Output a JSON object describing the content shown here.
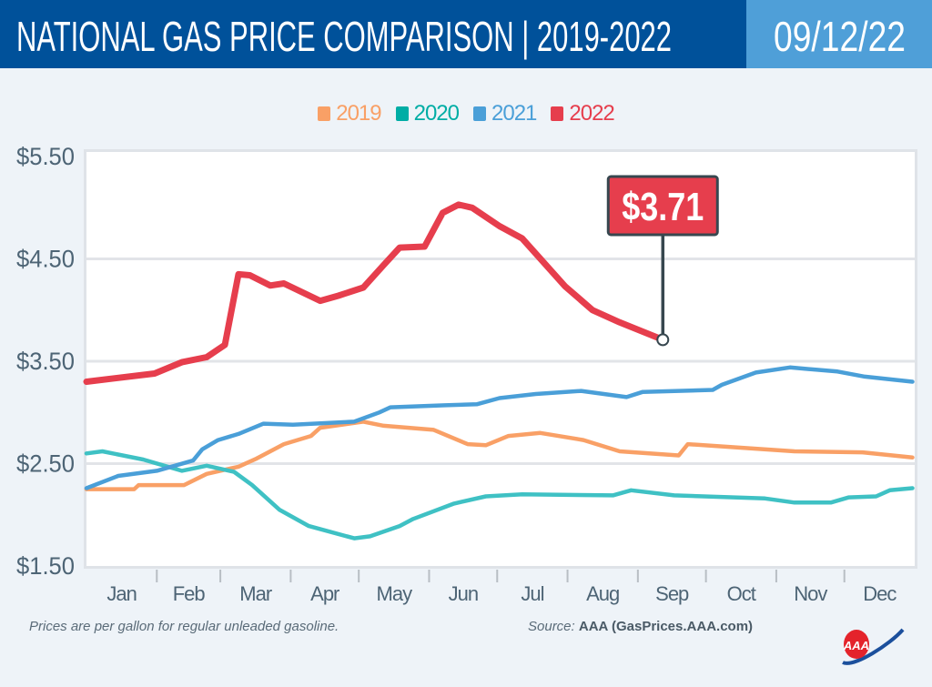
{
  "header": {
    "title": "NATIONAL GAS PRICE COMPARISON | 2019-2022",
    "date": "09/12/22"
  },
  "footer": {
    "note": "Prices are per gallon for regular unleaded gasoline.",
    "source_label": "Source:",
    "source": "AAA (GasPrices.AAA.com)"
  },
  "logo": {
    "text": "AAA"
  },
  "colors": {
    "header_bg": "#00519a",
    "date_bg": "#4f9fd8",
    "callout": "#e63e4d"
  },
  "chart_data": {
    "type": "line",
    "title": "",
    "xlabel": "",
    "ylabel": "",
    "ylim": [
      1.5,
      5.5
    ],
    "y_ticks": [
      "$1.50",
      "$2.50",
      "$3.50",
      "$4.50",
      "$5.50"
    ],
    "y_tick_values": [
      1.5,
      2.5,
      3.5,
      4.5,
      5.5
    ],
    "x_ticks": [
      "Jan",
      "Feb",
      "Mar",
      "Apr",
      "May",
      "Jun",
      "Jul",
      "Aug",
      "Sep",
      "Oct",
      "Nov",
      "Dec"
    ],
    "grid": true,
    "legend": "top-center",
    "annotation": {
      "label": "$3.71",
      "series": "2022",
      "date": "09-12",
      "value": 3.71
    },
    "series": [
      {
        "name": "2019",
        "color": "#f9a066",
        "points": [
          [
            "01-01",
            2.25
          ],
          [
            "01-22",
            2.25
          ],
          [
            "01-24",
            2.29
          ],
          [
            "02-13",
            2.29
          ],
          [
            "02-23",
            2.4
          ],
          [
            "03-09",
            2.47
          ],
          [
            "03-17",
            2.55
          ],
          [
            "03-29",
            2.69
          ],
          [
            "04-10",
            2.77
          ],
          [
            "04-14",
            2.85
          ],
          [
            "05-03",
            2.91
          ],
          [
            "05-12",
            2.87
          ],
          [
            "06-03",
            2.83
          ],
          [
            "06-18",
            2.69
          ],
          [
            "06-26",
            2.68
          ],
          [
            "07-06",
            2.77
          ],
          [
            "07-20",
            2.8
          ],
          [
            "08-08",
            2.73
          ],
          [
            "08-24",
            2.62
          ],
          [
            "09-19",
            2.58
          ],
          [
            "09-23",
            2.69
          ],
          [
            "10-20",
            2.65
          ],
          [
            "11-09",
            2.62
          ],
          [
            "12-09",
            2.61
          ],
          [
            "12-31",
            2.56
          ]
        ]
      },
      {
        "name": "2020",
        "color": "#3fc1c4",
        "points": [
          [
            "01-01",
            2.6
          ],
          [
            "01-08",
            2.62
          ],
          [
            "01-26",
            2.54
          ],
          [
            "02-12",
            2.43
          ],
          [
            "02-23",
            2.48
          ],
          [
            "03-07",
            2.42
          ],
          [
            "03-15",
            2.29
          ],
          [
            "03-27",
            2.05
          ],
          [
            "04-09",
            1.89
          ],
          [
            "04-29",
            1.77
          ],
          [
            "05-06",
            1.79
          ],
          [
            "05-19",
            1.89
          ],
          [
            "05-25",
            1.96
          ],
          [
            "06-12",
            2.11
          ],
          [
            "06-26",
            2.18
          ],
          [
            "07-12",
            2.2
          ],
          [
            "08-21",
            2.19
          ],
          [
            "08-29",
            2.24
          ],
          [
            "09-17",
            2.19
          ],
          [
            "10-27",
            2.16
          ],
          [
            "11-09",
            2.12
          ],
          [
            "11-25",
            2.12
          ],
          [
            "12-03",
            2.17
          ],
          [
            "12-15",
            2.18
          ],
          [
            "12-21",
            2.24
          ],
          [
            "12-31",
            2.26
          ]
        ]
      },
      {
        "name": "2021",
        "color": "#4a9fd8",
        "points": [
          [
            "01-01",
            2.26
          ],
          [
            "01-15",
            2.38
          ],
          [
            "02-01",
            2.43
          ],
          [
            "02-17",
            2.53
          ],
          [
            "02-21",
            2.64
          ],
          [
            "02-28",
            2.73
          ],
          [
            "03-09",
            2.79
          ],
          [
            "03-20",
            2.89
          ],
          [
            "04-02",
            2.88
          ],
          [
            "04-29",
            2.91
          ],
          [
            "05-10",
            3.0
          ],
          [
            "05-15",
            3.05
          ],
          [
            "06-08",
            3.07
          ],
          [
            "06-22",
            3.08
          ],
          [
            "07-02",
            3.14
          ],
          [
            "07-18",
            3.18
          ],
          [
            "08-07",
            3.21
          ],
          [
            "08-27",
            3.15
          ],
          [
            "09-03",
            3.2
          ],
          [
            "10-04",
            3.22
          ],
          [
            "10-08",
            3.27
          ],
          [
            "10-23",
            3.39
          ],
          [
            "11-07",
            3.44
          ],
          [
            "11-28",
            3.4
          ],
          [
            "12-10",
            3.35
          ],
          [
            "12-31",
            3.3
          ]
        ]
      },
      {
        "name": "2022",
        "color": "#e63e4d",
        "points": [
          [
            "01-01",
            3.3
          ],
          [
            "01-31",
            3.38
          ],
          [
            "02-12",
            3.49
          ],
          [
            "02-23",
            3.54
          ],
          [
            "03-03",
            3.66
          ],
          [
            "03-09",
            4.35
          ],
          [
            "03-14",
            4.34
          ],
          [
            "03-23",
            4.24
          ],
          [
            "03-29",
            4.26
          ],
          [
            "04-14",
            4.09
          ],
          [
            "04-22",
            4.14
          ],
          [
            "05-03",
            4.22
          ],
          [
            "05-12",
            4.44
          ],
          [
            "05-19",
            4.61
          ],
          [
            "05-30",
            4.62
          ],
          [
            "06-07",
            4.95
          ],
          [
            "06-14",
            5.03
          ],
          [
            "06-20",
            5.0
          ],
          [
            "07-02",
            4.82
          ],
          [
            "07-12",
            4.7
          ],
          [
            "07-31",
            4.23
          ],
          [
            "08-12",
            4.0
          ],
          [
            "08-24",
            3.88
          ],
          [
            "09-12",
            3.71
          ]
        ]
      }
    ]
  }
}
